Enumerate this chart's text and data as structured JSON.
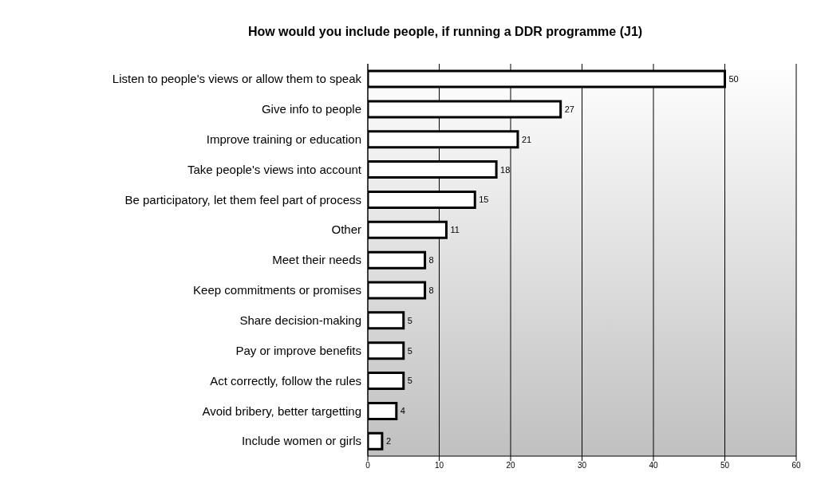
{
  "chart_data": {
    "type": "bar",
    "orientation": "horizontal",
    "title": "How would you include people, if running a DDR programme (J1)",
    "categories": [
      "Listen to people's views or allow them to speak",
      "Give info to people",
      "Improve training or education",
      "Take people's views into account",
      "Be participatory, let them feel part of process",
      "Other",
      "Meet their needs",
      "Keep commitments or promises",
      "Share decision-making",
      "Pay or improve benefits",
      "Act correctly, follow the rules",
      "Avoid bribery, better targetting",
      "Include women or girls"
    ],
    "values": [
      50,
      27,
      21,
      18,
      15,
      11,
      8,
      8,
      5,
      5,
      5,
      4,
      2
    ],
    "color": "#ffffff",
    "xlim": [
      0,
      60
    ],
    "xticks": [
      0,
      10,
      20,
      30,
      40,
      50,
      60
    ],
    "grid": "x",
    "data_labels": true
  }
}
